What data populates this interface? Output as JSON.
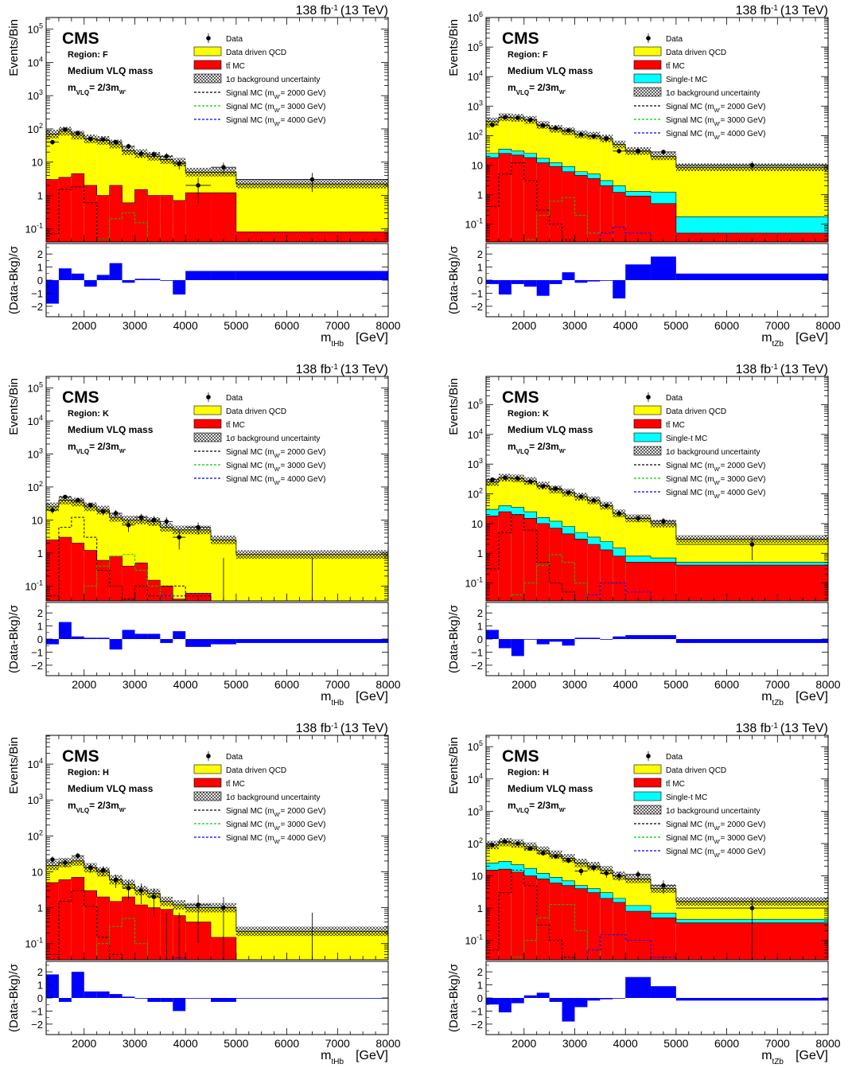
{
  "figure": {
    "lumi": "138 fb",
    "lumi_exp": "-1",
    "energy": "(13 TeV)",
    "cms": "CMS",
    "mass_label": "Medium VLQ mass",
    "mvlq_base": "m",
    "mvlq_sub": "VLQ",
    "mvlq_eq": "= 2/3m",
    "mvlq_sub2": "W'",
    "ylabel_main": "Events/Bin",
    "ylabel_ratio": "(Data-Bkg)/σ",
    "legend": {
      "data": "Data",
      "qcd": "Data driven QCD",
      "ttbar": "tt̄ MC",
      "single_t": "Single-t MC",
      "unc": "1σ background uncertainty",
      "sig_pre": "Signal MC (m",
      "sig_sub": "W'",
      "sig_2000": "= 2000 GeV)",
      "sig_3000": "= 3000 GeV)",
      "sig_4000": "= 4000 GeV)"
    },
    "colors": {
      "qcd": "#ffff00",
      "ttbar": "#ff0000",
      "single_t": "#00ffff",
      "pull": "#0000ff",
      "sig_2000": "#000000",
      "sig_3000": "#00cc00",
      "sig_4000": "#0000ff"
    }
  },
  "chart_data": [
    {
      "type": "bar",
      "region": "Region: F",
      "x_var": "m",
      "x_sub": "tHb",
      "x_unit": "[GeV]",
      "has_single_t": false,
      "xlim": [
        1250,
        8000
      ],
      "log_ylim_exp": [
        -1.4,
        5.35
      ],
      "y_tick_exps": [
        -1,
        0,
        1,
        2,
        3,
        4,
        5
      ],
      "x_ticks": [
        2000,
        3000,
        4000,
        5000,
        6000,
        7000,
        8000
      ],
      "bin_edges": [
        1250,
        1500,
        1750,
        2000,
        2250,
        2500,
        2750,
        3000,
        3250,
        3500,
        3750,
        4000,
        4500,
        5000,
        8000
      ],
      "total_bkg": [
        70,
        85,
        65,
        50,
        45,
        35,
        22,
        18,
        15,
        12,
        10,
        5,
        5,
        2.2
      ],
      "ttbar": [
        3,
        3.5,
        4.5,
        2,
        1,
        2,
        0.6,
        1.5,
        1,
        1,
        0.7,
        1.2,
        1.2,
        0.08
      ],
      "single_t": [],
      "data_x": [
        1375,
        1625,
        1875,
        2125,
        2375,
        2625,
        2875,
        3125,
        3375,
        3625,
        3875,
        4250,
        4750,
        6500
      ],
      "data_y": [
        40,
        95,
        75,
        50,
        48,
        40,
        30,
        18,
        17,
        15,
        9,
        2,
        7,
        3
      ],
      "sig_2000": [
        0.07,
        1.5,
        1.8,
        0.6,
        0.05,
        0.02,
        0.01,
        0.005,
        0,
        0,
        0,
        0,
        0,
        0
      ],
      "sig_3000": [
        0,
        0,
        0,
        0.02,
        0.05,
        0.2,
        0.3,
        0.15,
        0.02,
        0.01,
        0,
        0,
        0,
        0
      ],
      "sig_4000": [
        0,
        0,
        0,
        0,
        0,
        0,
        0,
        0.01,
        0.02,
        0.03,
        0.03,
        0.02,
        0.01,
        0
      ],
      "pull": [
        -1.8,
        0.9,
        0.5,
        -0.5,
        0.4,
        1.3,
        -0.2,
        0.1,
        0.1,
        0,
        -1.1,
        0.7,
        0.7,
        0.7
      ],
      "pull_ylim": [
        -2.8,
        2.8
      ],
      "pull_ticks": [
        -2,
        -1,
        0,
        1,
        2
      ]
    },
    {
      "type": "bar",
      "region": "Region: F",
      "x_var": "m",
      "x_sub": "tZb",
      "x_unit": "[GeV]",
      "has_single_t": true,
      "xlim": [
        1250,
        8000
      ],
      "log_ylim_exp": [
        -1.6,
        6.0
      ],
      "y_tick_exps": [
        -1,
        0,
        1,
        2,
        3,
        4,
        5,
        6
      ],
      "x_ticks": [
        2000,
        3000,
        4000,
        5000,
        6000,
        7000,
        8000
      ],
      "bin_edges": [
        1250,
        1500,
        1750,
        2000,
        2250,
        2500,
        2750,
        3000,
        3250,
        3500,
        3750,
        4000,
        4500,
        5000,
        8000
      ],
      "total_bkg": [
        300,
        420,
        400,
        340,
        230,
        170,
        140,
        110,
        100,
        80,
        50,
        30,
        20,
        8.5
      ],
      "ttbar": [
        18,
        25,
        22,
        18,
        12,
        9,
        6,
        4.5,
        3.5,
        2,
        1.2,
        0.9,
        0.5,
        0.05
      ],
      "single_t": [
        25,
        35,
        30,
        25,
        17,
        12,
        9,
        6,
        5,
        3,
        2,
        1.3,
        1.2,
        0.18
      ],
      "data_x": [
        1375,
        1625,
        1875,
        2125,
        2375,
        2625,
        2875,
        3125,
        3375,
        3625,
        3875,
        4250,
        4750,
        6500
      ],
      "data_y": [
        230,
        420,
        400,
        340,
        220,
        180,
        150,
        110,
        95,
        80,
        30,
        30,
        28,
        10
      ],
      "sig_2000": [
        0.4,
        5,
        12,
        3,
        0.3,
        0.1,
        0.03,
        0.01,
        0,
        0,
        0,
        0,
        0,
        0
      ],
      "sig_3000": [
        0,
        0,
        0,
        0.03,
        0.2,
        0.6,
        0.8,
        0.2,
        0.05,
        0.01,
        0,
        0,
        0,
        0
      ],
      "sig_4000": [
        0,
        0,
        0,
        0,
        0,
        0,
        0,
        0.01,
        0.02,
        0.05,
        0.08,
        0.05,
        0.02,
        0
      ],
      "pull": [
        -0.3,
        -1.1,
        -0.3,
        -0.5,
        -1.2,
        -0.3,
        0.6,
        -0.2,
        -0.1,
        0,
        -1.4,
        1.2,
        1.8,
        0.5
      ],
      "pull_ylim": [
        -2.8,
        2.8
      ],
      "pull_ticks": [
        -2,
        -1,
        0,
        1,
        2
      ]
    },
    {
      "type": "bar",
      "region": "Region: K",
      "x_var": "m",
      "x_sub": "tHb",
      "x_unit": "[GeV]",
      "has_single_t": false,
      "xlim": [
        1250,
        8000
      ],
      "log_ylim_exp": [
        -1.45,
        5.35
      ],
      "y_tick_exps": [
        -1,
        0,
        1,
        2,
        3,
        4,
        5
      ],
      "x_ticks": [
        2000,
        3000,
        4000,
        5000,
        6000,
        7000,
        8000
      ],
      "bin_edges": [
        1250,
        1500,
        1750,
        2000,
        2250,
        2500,
        2750,
        3000,
        3250,
        3500,
        3750,
        4000,
        4500,
        5000,
        8000
      ],
      "total_bkg": [
        25,
        40,
        35,
        25,
        20,
        12,
        10,
        10,
        9,
        6,
        5,
        5,
        2.5,
        0.9
      ],
      "ttbar": [
        2.5,
        3,
        2,
        1.2,
        0.6,
        0.8,
        0.4,
        0.5,
        0.15,
        0.1,
        0.04,
        0.06,
        0.02,
        0.01
      ],
      "single_t": [],
      "data_x": [
        1375,
        1625,
        1875,
        2125,
        2375,
        2625,
        2875,
        3125,
        3375,
        3625,
        3875,
        4250,
        4750,
        6500
      ],
      "data_y": [
        20,
        50,
        40,
        28,
        18,
        16,
        7,
        12,
        10,
        9,
        3,
        6,
        0.01,
        0.01
      ],
      "sig_2000": [
        0.05,
        6,
        12,
        3,
        0.3,
        0.1,
        0.04,
        0.1,
        0.05,
        0.1,
        0.1,
        0.05,
        0,
        0
      ],
      "sig_3000": [
        0,
        0,
        0.03,
        0.1,
        0.4,
        0.8,
        0.9,
        0.3,
        0.1,
        0.05,
        0,
        0,
        0,
        0
      ],
      "sig_4000": [
        0,
        0,
        0,
        0,
        0,
        0,
        0,
        0,
        0.01,
        0.05,
        0.05,
        0.06,
        0,
        0
      ],
      "pull": [
        -0.4,
        1.3,
        0.2,
        0.1,
        0.1,
        -0.8,
        0.7,
        0.4,
        0.4,
        -0.3,
        0.6,
        -0.6,
        -0.4,
        -0.3
      ],
      "pull_ylim": [
        -2.8,
        2.8
      ],
      "pull_ticks": [
        -2,
        -1,
        0,
        1,
        2
      ]
    },
    {
      "type": "bar",
      "region": "Region: K",
      "x_var": "m",
      "x_sub": "tZb",
      "x_unit": "[GeV]",
      "has_single_t": true,
      "xlim": [
        1250,
        8000
      ],
      "log_ylim_exp": [
        -1.6,
        5.95
      ],
      "y_tick_exps": [
        -1,
        0,
        1,
        2,
        3,
        4,
        5
      ],
      "x_ticks": [
        2000,
        3000,
        4000,
        5000,
        6000,
        7000,
        8000
      ],
      "bin_edges": [
        1250,
        1500,
        1750,
        2000,
        2250,
        2500,
        2750,
        3000,
        3250,
        3500,
        3750,
        4000,
        4500,
        5000,
        8000
      ],
      "total_bkg": [
        250,
        350,
        330,
        270,
        190,
        140,
        110,
        80,
        60,
        40,
        22,
        15,
        10,
        3
      ],
      "ttbar": [
        18,
        25,
        20,
        15,
        10,
        7,
        4.5,
        3,
        2,
        1.3,
        0.8,
        0.5,
        0.5,
        0.4
      ],
      "single_t": [
        30,
        40,
        35,
        25,
        16,
        12,
        8,
        5,
        3.5,
        2.5,
        1.5,
        0.8,
        0.7,
        0.5
      ],
      "data_x": [
        1375,
        1625,
        1875,
        2125,
        2375,
        2625,
        2875,
        3125,
        3375,
        3625,
        3875,
        4250,
        4750,
        6500
      ],
      "data_y": [
        300,
        350,
        330,
        260,
        180,
        150,
        110,
        80,
        60,
        40,
        22,
        15,
        12,
        2
      ],
      "sig_2000": [
        0.3,
        5,
        20,
        6,
        0.5,
        0.1,
        0.05,
        0.01,
        0,
        0,
        0,
        0,
        0,
        0
      ],
      "sig_3000": [
        0,
        0,
        0.04,
        0.1,
        0.4,
        0.9,
        0.5,
        0.1,
        0.02,
        0.01,
        0,
        0,
        0,
        0
      ],
      "sig_4000": [
        0,
        0,
        0,
        0,
        0,
        0,
        0,
        0.02,
        0.04,
        0.1,
        0.1,
        0.05,
        0.02,
        0
      ],
      "pull": [
        0.7,
        -0.7,
        -1.3,
        0,
        -0.4,
        -0.2,
        -0.5,
        0.1,
        0.1,
        0,
        0.2,
        0.3,
        0.3,
        -0.3
      ],
      "pull_ylim": [
        -2.8,
        2.8
      ],
      "pull_ticks": [
        -2,
        -1,
        0,
        1,
        2
      ]
    },
    {
      "type": "bar",
      "region": "Region: H",
      "x_var": "m",
      "x_sub": "tHb",
      "x_unit": "[GeV]",
      "has_single_t": false,
      "xlim": [
        1250,
        8000
      ],
      "log_ylim_exp": [
        -1.45,
        4.8
      ],
      "y_tick_exps": [
        -1,
        0,
        1,
        2,
        3,
        4
      ],
      "x_ticks": [
        2000,
        3000,
        4000,
        5000,
        6000,
        7000,
        8000
      ],
      "bin_edges": [
        1250,
        1500,
        1750,
        2000,
        2250,
        2500,
        2750,
        3000,
        3250,
        3500,
        3750,
        4000,
        4500,
        5000,
        8000
      ],
      "total_bkg": [
        15,
        18,
        20,
        13,
        10,
        6,
        4.5,
        3,
        2.5,
        1.5,
        1.2,
        1,
        1,
        0.22
      ],
      "ttbar": [
        5,
        6,
        7,
        3,
        2,
        1.5,
        2,
        1.2,
        1,
        0.9,
        0.6,
        0.4,
        0.15,
        0.03
      ],
      "single_t": [],
      "data_x": [
        1375,
        1625,
        1875,
        2125,
        2375,
        2625,
        2875,
        3125,
        3375,
        3625,
        3875,
        4250,
        4750,
        6500
      ],
      "data_y": [
        22,
        18,
        28,
        13,
        11,
        6,
        3.5,
        3,
        2,
        0.02,
        0.02,
        1.2,
        1,
        0.02
      ],
      "sig_2000": [
        0.05,
        1.5,
        3,
        1.1,
        0.15,
        0.05,
        0.02,
        0.01,
        0,
        0,
        0,
        0,
        0,
        0
      ],
      "sig_3000": [
        0,
        0,
        0.01,
        0.03,
        0.1,
        0.3,
        0.5,
        0.1,
        0.03,
        0.01,
        0,
        0,
        0,
        0
      ],
      "sig_4000": [
        0,
        0,
        0,
        0,
        0,
        0,
        0,
        0,
        0.01,
        0.02,
        0.04,
        0.03,
        0.01,
        0
      ],
      "pull": [
        1.8,
        -0.3,
        2.0,
        0.5,
        0.5,
        0.3,
        0.1,
        0,
        -0.3,
        -0.3,
        -1.0,
        0,
        -0.3,
        0
      ],
      "pull_ylim": [
        -2.8,
        2.8
      ],
      "pull_ticks": [
        -2,
        -1,
        0,
        1,
        2
      ]
    },
    {
      "type": "bar",
      "region": "Region: H",
      "x_var": "m",
      "x_sub": "tZb",
      "x_unit": "[GeV]",
      "has_single_t": true,
      "xlim": [
        1250,
        8000
      ],
      "log_ylim_exp": [
        -1.6,
        5.35
      ],
      "y_tick_exps": [
        -1,
        0,
        1,
        2,
        3,
        4,
        5
      ],
      "x_ticks": [
        2000,
        3000,
        4000,
        5000,
        6000,
        7000,
        8000
      ],
      "bin_edges": [
        1250,
        1500,
        1750,
        2000,
        2250,
        2500,
        2750,
        3000,
        3250,
        3500,
        3750,
        4000,
        4500,
        5000,
        8000
      ],
      "total_bkg": [
        90,
        110,
        100,
        80,
        60,
        45,
        35,
        25,
        20,
        15,
        10,
        8,
        4,
        1.6
      ],
      "ttbar": [
        15,
        16,
        13,
        10,
        8,
        6,
        5,
        4,
        3,
        2,
        1.5,
        0.8,
        0.5,
        0.35
      ],
      "single_t": [
        25,
        28,
        22,
        17,
        12,
        9,
        7,
        5,
        4,
        3,
        2,
        1.2,
        0.7,
        0.45
      ],
      "data_x": [
        1375,
        1625,
        1875,
        2125,
        2375,
        2625,
        2875,
        3125,
        3375,
        3625,
        3875,
        4250,
        4750,
        6500
      ],
      "data_y": [
        90,
        115,
        100,
        70,
        50,
        40,
        30,
        14,
        18,
        12,
        10,
        11,
        5,
        1
      ],
      "sig_2000": [
        0.05,
        3,
        15,
        5,
        0.3,
        0.1,
        0.03,
        0.01,
        0,
        0,
        0,
        0,
        0,
        0
      ],
      "sig_3000": [
        0,
        0,
        0.03,
        0.1,
        0.5,
        1.3,
        1.3,
        0.2,
        0.05,
        0.01,
        0,
        0,
        0,
        0
      ],
      "sig_4000": [
        0,
        0,
        0,
        0,
        0,
        0,
        0,
        0.01,
        0.05,
        0.15,
        0.15,
        0.1,
        0.03,
        0
      ],
      "pull": [
        -0.5,
        -1.1,
        -0.4,
        0.2,
        0.4,
        -0.3,
        -1.8,
        -0.7,
        -0.2,
        -0.1,
        0,
        1.6,
        0.9,
        -0.2
      ],
      "pull_ylim": [
        -2.8,
        2.8
      ],
      "pull_ticks": [
        -2,
        -1,
        0,
        1,
        2
      ]
    }
  ]
}
